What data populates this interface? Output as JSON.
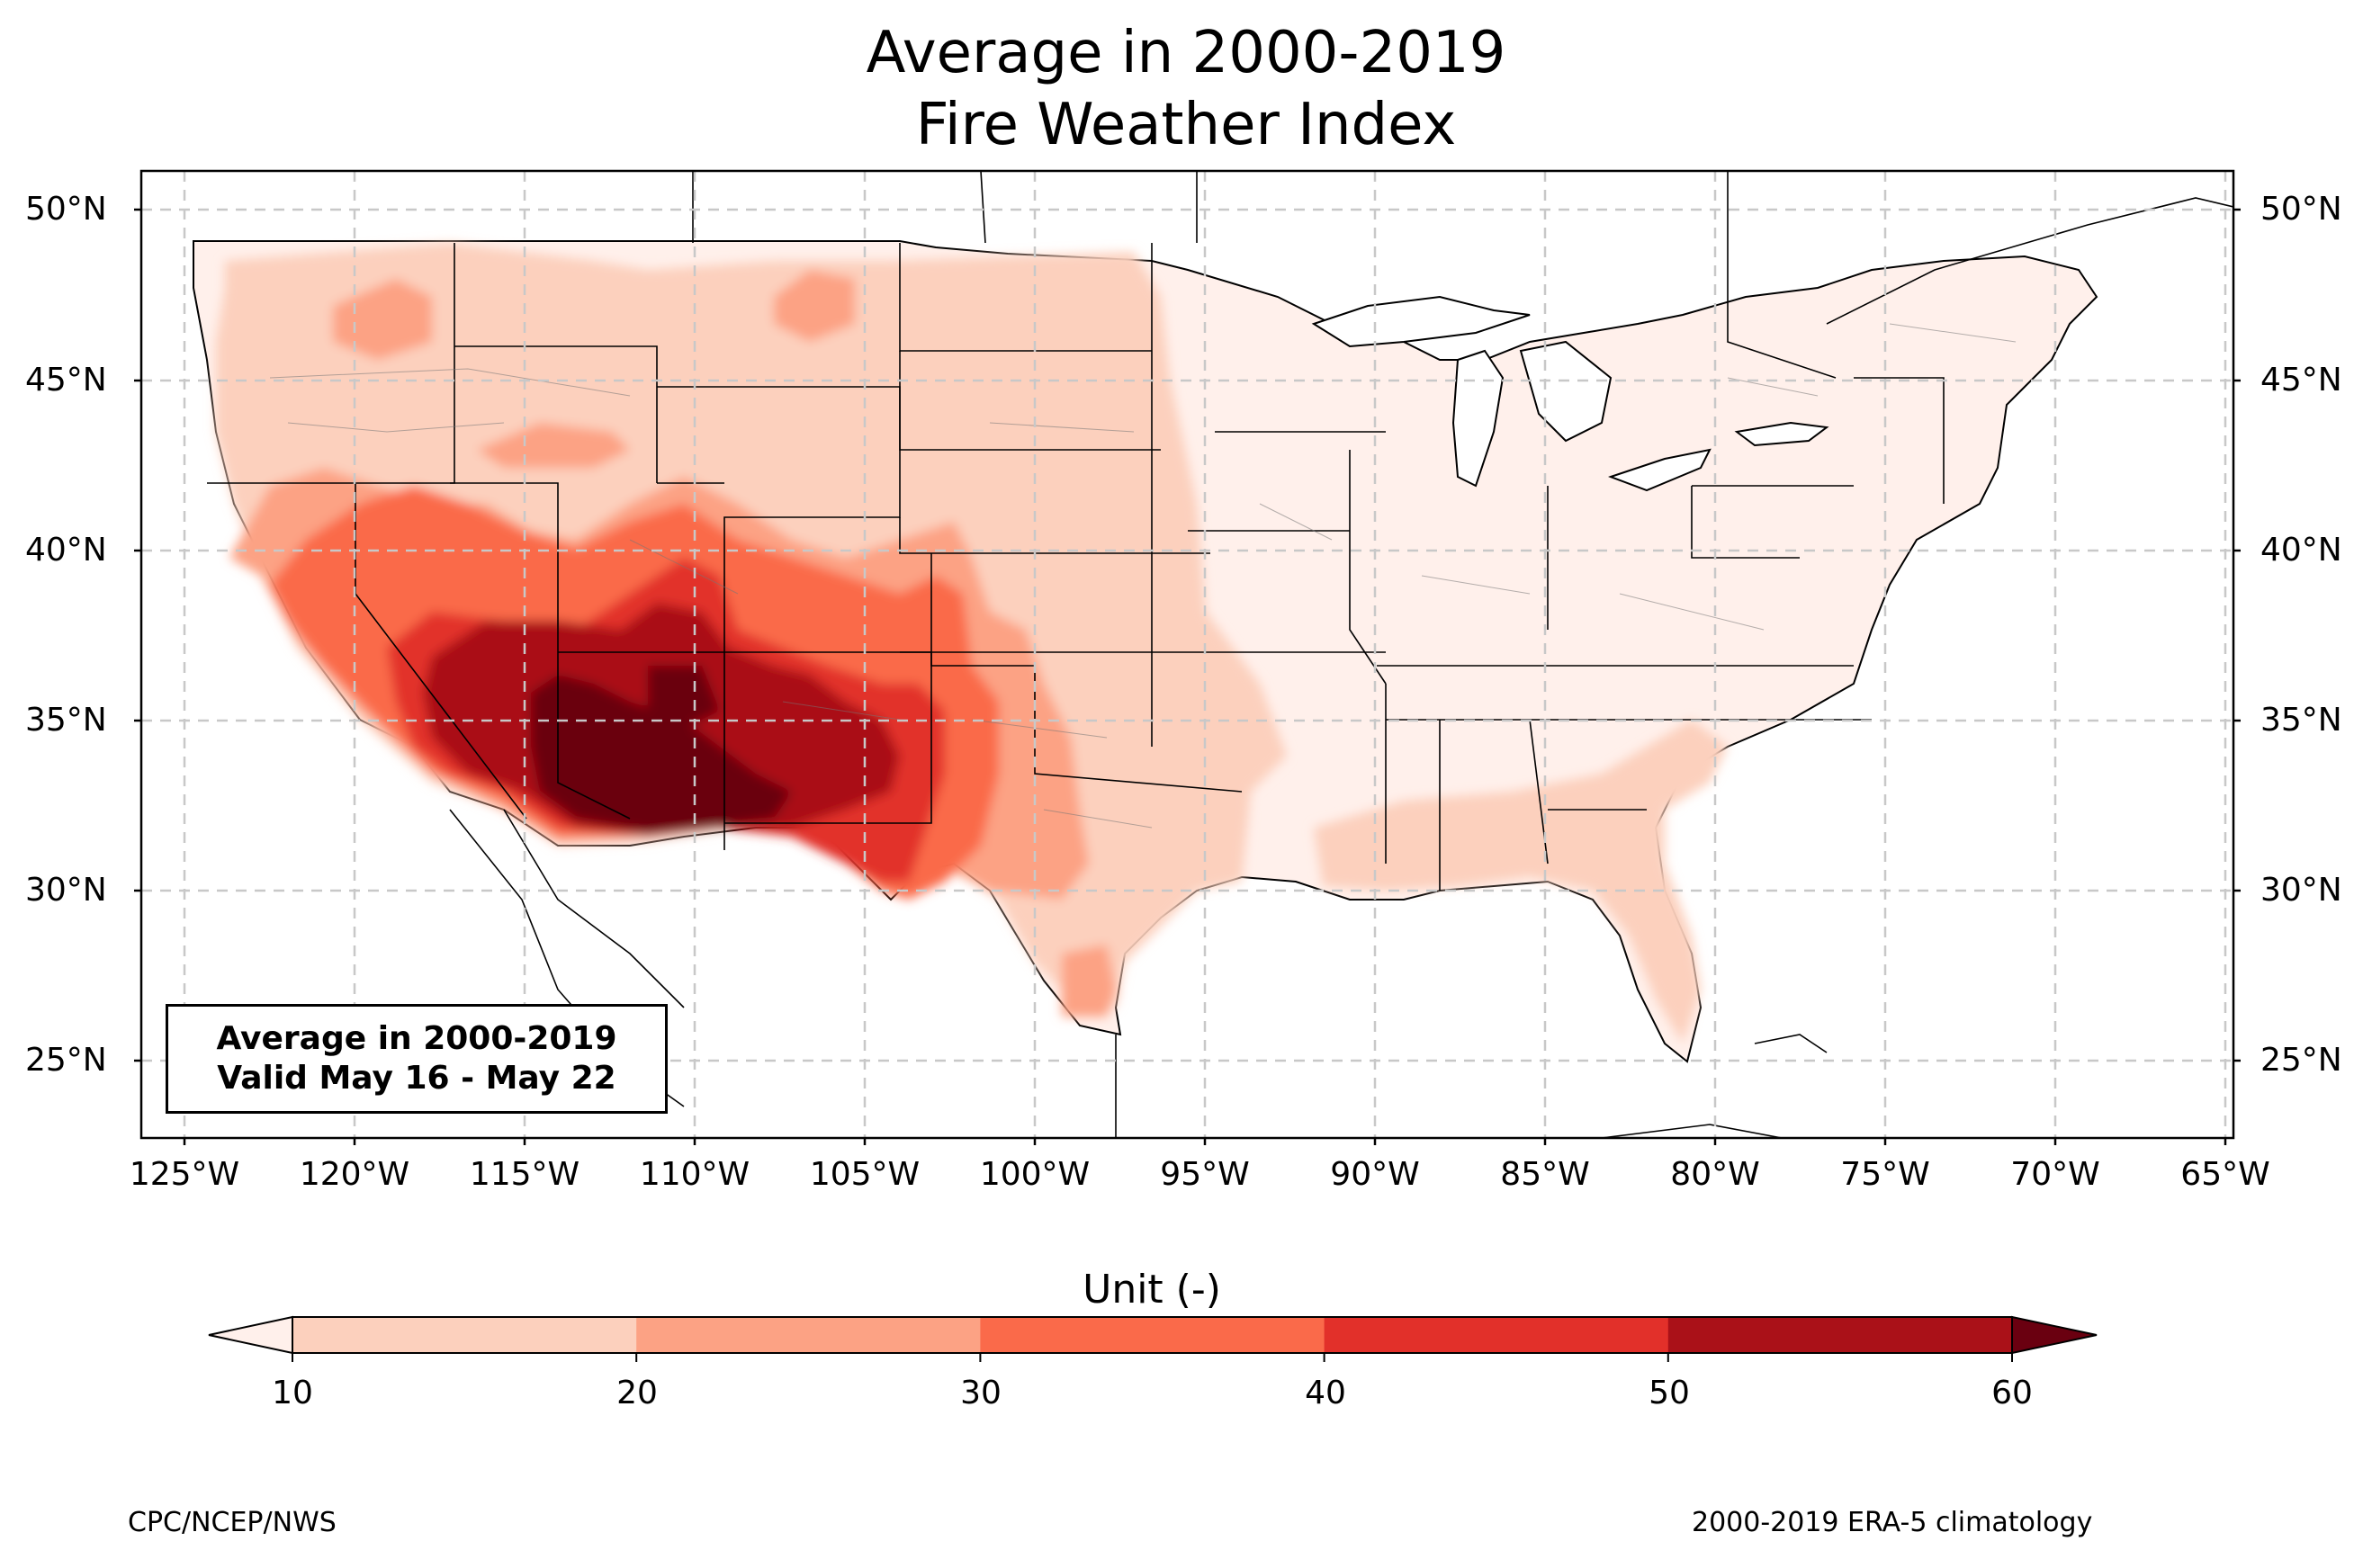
{
  "title": {
    "line1": "Average in 2000-2019",
    "line2": "Fire Weather Index"
  },
  "axes": {
    "lat_labels": [
      "50°N",
      "45°N",
      "40°N",
      "35°N",
      "30°N",
      "25°N"
    ],
    "lon_labels": [
      "125°W",
      "120°W",
      "115°W",
      "110°W",
      "105°W",
      "100°W",
      "95°W",
      "90°W",
      "85°W",
      "80°W",
      "75°W",
      "70°W",
      "65°W"
    ]
  },
  "info_box": {
    "line1": "Average in 2000-2019",
    "line2": "Valid May 16 - May 22"
  },
  "colorbar": {
    "title": "Unit (-)",
    "ticks": [
      "10",
      "20",
      "30",
      "40",
      "50",
      "60"
    ],
    "colors": [
      "#fff0eb",
      "#fcd0bd",
      "#fca284",
      "#fa6a4a",
      "#e2302a",
      "#aa1118",
      "#6a0010"
    ]
  },
  "footer": {
    "left": "CPC/NCEP/NWS",
    "right": "2000-2019 ERA-5 climatology"
  },
  "map": {
    "region": "Contiguous United States",
    "palette": "Reds",
    "grid": "dashed"
  }
}
